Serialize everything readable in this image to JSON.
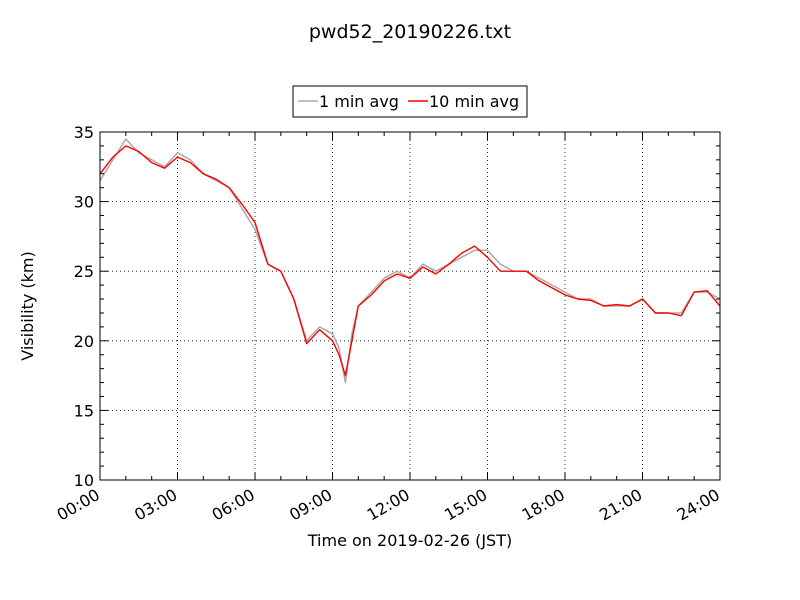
{
  "chart_data": {
    "type": "line",
    "title": "pwd52_20190226.txt",
    "xlabel": "Time on 2019-02-26 (JST)",
    "ylabel": "Visibility (km)",
    "xlim_hours": [
      0,
      24
    ],
    "ylim": [
      10,
      35
    ],
    "x_ticks": [
      "00:00",
      "03:00",
      "06:00",
      "09:00",
      "12:00",
      "15:00",
      "18:00",
      "21:00",
      "24:00"
    ],
    "y_ticks": [
      10,
      15,
      20,
      25,
      30,
      35
    ],
    "grid": true,
    "legend_position": "top-center",
    "x_hours": [
      0,
      0.5,
      1,
      1.5,
      2,
      2.5,
      3,
      3.5,
      4,
      4.5,
      5,
      5.5,
      6,
      6.5,
      7,
      7.5,
      8,
      8.5,
      9,
      9.25,
      9.5,
      9.75,
      10,
      10.5,
      11,
      11.5,
      12,
      12.5,
      13,
      13.5,
      14,
      14.5,
      15,
      15.5,
      16,
      16.5,
      17,
      17.5,
      18,
      18.5,
      19,
      19.5,
      20,
      20.5,
      21,
      21.5,
      22,
      22.5,
      23,
      23.5,
      24
    ],
    "series": [
      {
        "name": "1 min avg",
        "color": "#aaaaaa",
        "values": [
          31.5,
          33.0,
          34.5,
          33.5,
          33.0,
          32.5,
          33.5,
          33.0,
          32.0,
          31.5,
          31.0,
          29.5,
          28.0,
          25.5,
          25.0,
          23.0,
          20.0,
          21.0,
          20.5,
          19.5,
          17.0,
          20.5,
          22.5,
          23.5,
          24.5,
          25.0,
          24.5,
          25.5,
          25.0,
          25.5,
          26.0,
          26.5,
          26.5,
          25.5,
          25.0,
          25.0,
          24.5,
          24.0,
          23.5,
          23.0,
          23.0,
          22.5,
          22.5,
          22.5,
          23.0,
          22.0,
          22.0,
          22.0,
          23.5,
          23.5,
          23.0
        ]
      },
      {
        "name": "10 min avg",
        "color": "#ff0000",
        "values": [
          32.0,
          33.2,
          34.0,
          33.6,
          32.8,
          32.4,
          33.2,
          32.8,
          32.0,
          31.6,
          31.0,
          29.8,
          28.5,
          25.5,
          25.0,
          23.0,
          19.8,
          20.8,
          20.0,
          19.0,
          17.5,
          20.0,
          22.5,
          23.3,
          24.3,
          24.8,
          24.5,
          25.3,
          24.8,
          25.5,
          26.3,
          26.8,
          26.0,
          25.0,
          25.0,
          25.0,
          24.3,
          23.8,
          23.3,
          23.0,
          22.9,
          22.5,
          22.6,
          22.5,
          23.0,
          22.0,
          22.0,
          21.8,
          23.5,
          23.6,
          22.5
        ]
      }
    ]
  }
}
